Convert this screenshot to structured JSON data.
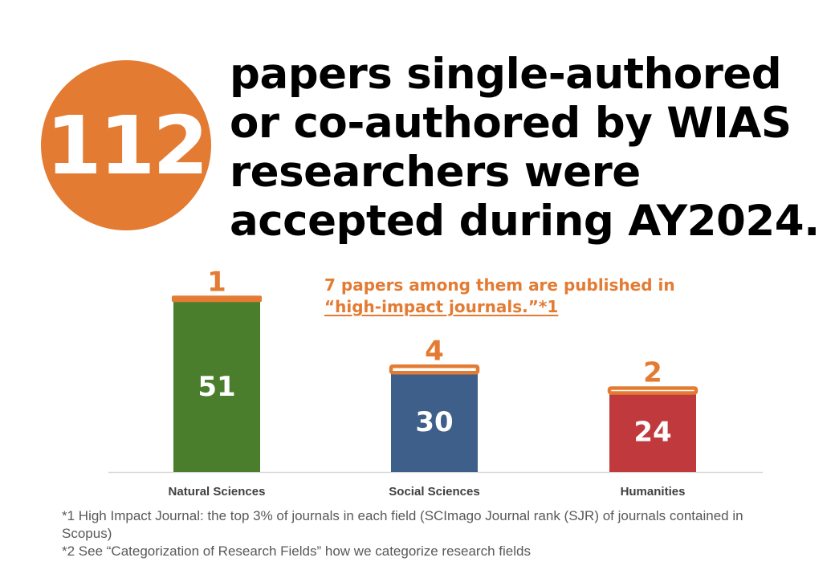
{
  "badge": {
    "number": "112",
    "color": "#E37B33"
  },
  "headline": {
    "lines": [
      "papers single-authored",
      "or co-authored by WIAS",
      "researchers were",
      "accepted during AY2024."
    ]
  },
  "annotation": {
    "line1": "7 papers among them are published in",
    "line2": "“high-impact journals.”*1"
  },
  "chart_data": {
    "type": "bar",
    "stacked": true,
    "categories": [
      "Natural Sciences",
      "Social Sciences",
      "Humanities"
    ],
    "series": [
      {
        "name": "",
        "values": [
          51,
          30,
          24
        ],
        "colors": [
          "#4A7E2D",
          "#3E5F8A",
          "#C0393D"
        ]
      },
      {
        "name": "",
        "values": [
          1,
          4,
          2
        ],
        "color": "#E37B33"
      }
    ],
    "segment_labels": [
      "51",
      "30",
      "24"
    ],
    "top_labels": [
      "1",
      "4",
      "2"
    ],
    "xlabel": "",
    "ylabel": "",
    "grid": false
  },
  "footnotes": [
    "*1 High Impact Journal: the top 3% of journals in each field (SCImago Journal rank (SJR) of journals contained in Scopus)",
    "*2 See “Categorization of Research Fields” how we categorize research fields"
  ]
}
